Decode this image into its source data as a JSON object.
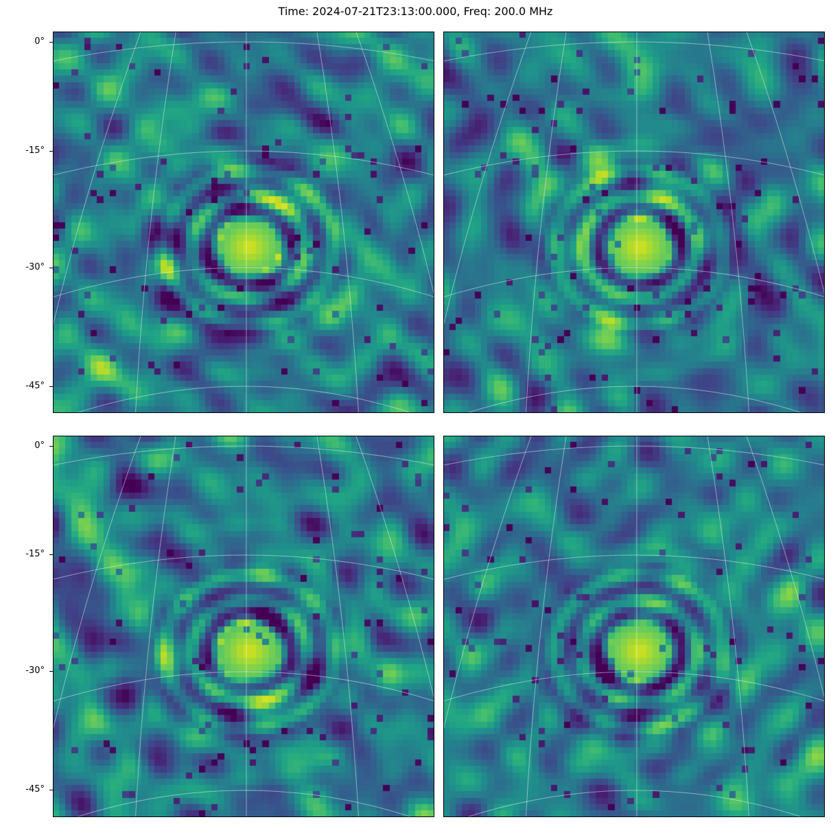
{
  "chart_data": [
    {
      "type": "heatmap",
      "panel": "top-left",
      "colormap": "viridis",
      "title": "Time: 2024-07-21T23:13:00.000, Freq: 200.0 MHz",
      "yticks": [
        "0°",
        "-15°",
        "-30°",
        "-45°"
      ],
      "dec_values": [
        0,
        -15,
        -30,
        -45
      ],
      "ylim": [
        -50,
        2
      ],
      "source_center_deg": {
        "ra_offset": 0,
        "dec": -27
      },
      "grid": true,
      "seed": 11
    },
    {
      "type": "heatmap",
      "panel": "top-right",
      "colormap": "viridis",
      "yticks": [],
      "ylim": [
        -50,
        2
      ],
      "source_center_deg": {
        "ra_offset": 0,
        "dec": -27
      },
      "grid": true,
      "seed": 23
    },
    {
      "type": "heatmap",
      "panel": "bottom-left",
      "colormap": "viridis",
      "yticks": [
        "0°",
        "-15°",
        "-30°",
        "-45°"
      ],
      "dec_values": [
        0,
        -15,
        -30,
        -45
      ],
      "ylim": [
        -50,
        2
      ],
      "source_center_deg": {
        "ra_offset": 0,
        "dec": -27
      },
      "grid": true,
      "seed": 37
    },
    {
      "type": "heatmap",
      "panel": "bottom-right",
      "colormap": "viridis",
      "yticks": [],
      "ylim": [
        -50,
        2
      ],
      "source_center_deg": {
        "ra_offset": 0,
        "dec": -27
      },
      "grid": true,
      "seed": 53
    }
  ],
  "figure": {
    "title": "Time: 2024-07-21T23:13:00.000, Freq: 200.0 MHz",
    "tick_labels": [
      "0°",
      "-15°",
      "-30°",
      "-45°"
    ]
  }
}
